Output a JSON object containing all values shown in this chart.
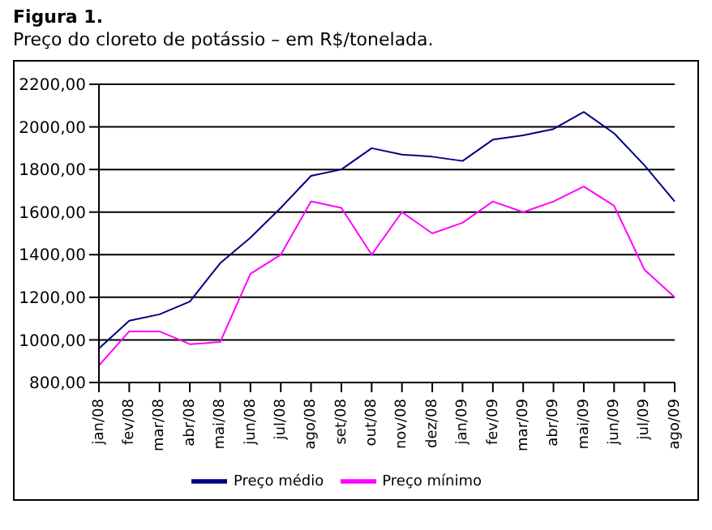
{
  "chart_data": {
    "type": "line",
    "title": "Figura 1.",
    "subtitle": "Preço do cloreto de potássio – em R$/tonelada.",
    "categories": [
      "jan/08",
      "fev/08",
      "mar/08",
      "abr/08",
      "mai/08",
      "jun/08",
      "jul/08",
      "ago/08",
      "set/08",
      "out/08",
      "nov/08",
      "dez/08",
      "jan/09",
      "fev/09",
      "mar/09",
      "abr/09",
      "mai/09",
      "jun/09",
      "jul/09",
      "ago/09"
    ],
    "series": [
      {
        "name": "Preço médio",
        "color": "#000080",
        "values": [
          960,
          1090,
          1120,
          1180,
          1360,
          1480,
          1620,
          1770,
          1800,
          1900,
          1870,
          1860,
          1840,
          1940,
          1960,
          1990,
          2070,
          1970,
          1820,
          1650
        ]
      },
      {
        "name": "Preço mínimo",
        "color": "#ff00ff",
        "values": [
          880,
          1040,
          1040,
          980,
          990,
          1310,
          1400,
          1650,
          1620,
          1400,
          1600,
          1500,
          1550,
          1650,
          1600,
          1650,
          1720,
          1630,
          1330,
          1200
        ]
      }
    ],
    "ylim": [
      800,
      2200
    ],
    "yticks": [
      {
        "value": 800,
        "label": "800,00"
      },
      {
        "value": 1000,
        "label": "1000,00"
      },
      {
        "value": 1200,
        "label": "1200,00"
      },
      {
        "value": 1400,
        "label": "1400,00"
      },
      {
        "value": 1600,
        "label": "1600,00"
      },
      {
        "value": 1800,
        "label": "1800,00"
      },
      {
        "value": 2000,
        "label": "2000,00"
      },
      {
        "value": 2200,
        "label": "2200,00"
      }
    ],
    "grid": "y",
    "legend": "bottom",
    "marker": "none",
    "line_style": "solid"
  }
}
